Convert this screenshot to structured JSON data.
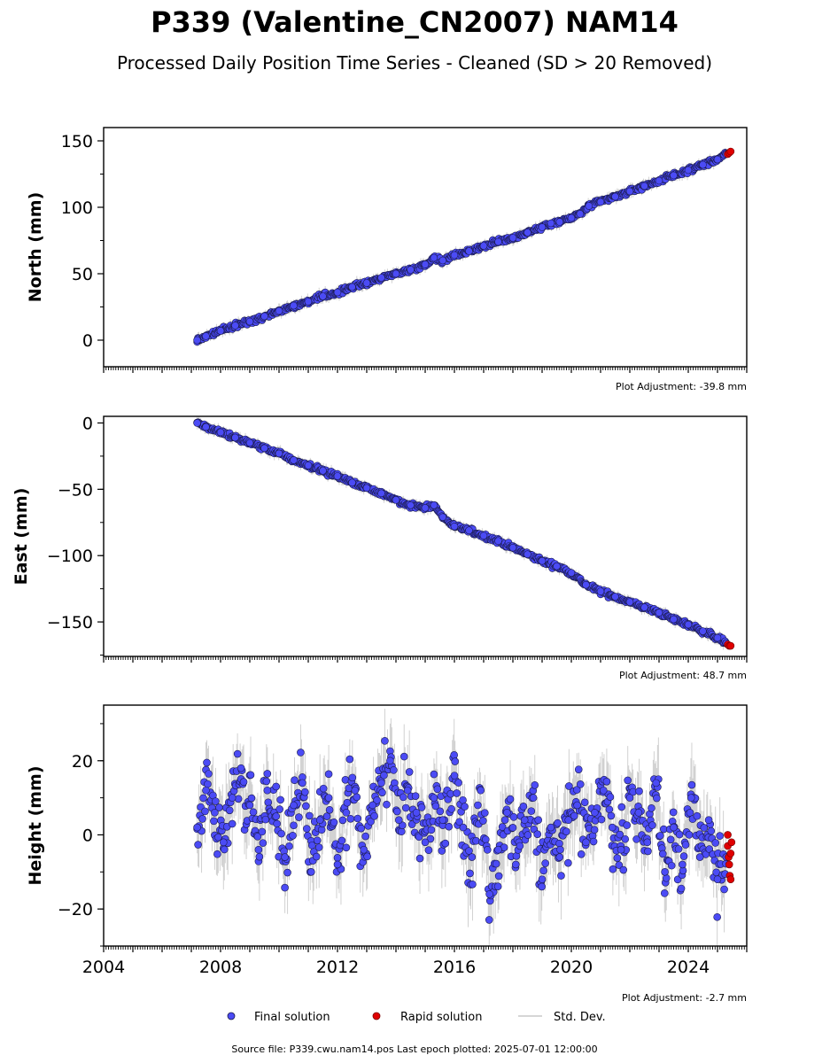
{
  "title": "P339 (Valentine_CN2007) NAM14",
  "subtitle": "Processed Daily Position Time Series - Cleaned (SD > 20 Removed)",
  "footer": "Source file: P339.cwu.nam14.pos  Last epoch plotted: 2025-07-01 12:00:00",
  "colors": {
    "final": "#4b4bf5",
    "final_edge": "#1a1a4a",
    "rapid": "#e00000",
    "stddev": "#9a9a9a"
  },
  "legend": [
    {
      "label": "Final solution",
      "marker": "dot",
      "color": "#4b4bf5"
    },
    {
      "label": "Rapid solution",
      "marker": "dot",
      "color": "#e00000"
    },
    {
      "label": "Std. Dev.",
      "marker": "line",
      "color": "#c8c8c8"
    }
  ],
  "chart_data": [
    {
      "type": "scatter",
      "ylabel": "North (mm)",
      "adjustment": "Plot Adjustment: -39.8 mm",
      "xlim": [
        2004.0,
        2026.0
      ],
      "ylim": [
        -20,
        160
      ],
      "yticks": [
        0,
        50,
        100,
        150
      ],
      "yticklabels": [
        "0",
        "50",
        "100",
        "150"
      ],
      "x_tick_labels_shown": false,
      "series": [
        {
          "name": "Final solution",
          "x": [
            2007.2,
            2007.5,
            2008.0,
            2008.5,
            2009.0,
            2009.5,
            2010.0,
            2010.5,
            2011.0,
            2011.5,
            2012.0,
            2012.5,
            2013.0,
            2013.5,
            2014.0,
            2014.5,
            2015.0,
            2015.3,
            2015.6,
            2016.0,
            2016.5,
            2017.0,
            2017.5,
            2018.0,
            2018.5,
            2019.0,
            2019.3,
            2019.6,
            2020.0,
            2020.3,
            2020.6,
            2021.0,
            2021.5,
            2022.0,
            2022.5,
            2023.0,
            2023.5,
            2024.0,
            2024.5,
            2025.0,
            2025.3
          ],
          "y": [
            0,
            3,
            7,
            11,
            14,
            18,
            22,
            26,
            29,
            33,
            36,
            40,
            43,
            47,
            50,
            53,
            57,
            62,
            60,
            64,
            67,
            71,
            74,
            77,
            81,
            85,
            88,
            89,
            92,
            95,
            101,
            104,
            108,
            112,
            116,
            120,
            124,
            128,
            132,
            136,
            140
          ]
        },
        {
          "name": "Rapid solution",
          "x": [
            2025.35,
            2025.4,
            2025.45
          ],
          "y": [
            140,
            141,
            142
          ]
        }
      ]
    },
    {
      "type": "scatter",
      "ylabel": "East (mm)",
      "adjustment": "Plot Adjustment: 48.7 mm",
      "xlim": [
        2004.0,
        2026.0
      ],
      "ylim": [
        -176,
        5
      ],
      "yticks": [
        0,
        -50,
        -100,
        -150
      ],
      "yticklabels": [
        "0",
        "−50",
        "−100",
        "−150"
      ],
      "x_tick_labels_shown": false,
      "series": [
        {
          "name": "Final solution",
          "x": [
            2007.2,
            2007.5,
            2008.0,
            2008.5,
            2009.0,
            2009.5,
            2010.0,
            2010.5,
            2011.0,
            2011.5,
            2012.0,
            2012.5,
            2013.0,
            2013.5,
            2014.0,
            2014.5,
            2015.0,
            2015.3,
            2015.6,
            2016.0,
            2016.5,
            2017.0,
            2017.5,
            2018.0,
            2018.5,
            2019.0,
            2019.5,
            2020.0,
            2020.5,
            2021.0,
            2021.5,
            2022.0,
            2022.5,
            2023.0,
            2023.5,
            2024.0,
            2024.5,
            2025.0,
            2025.3
          ],
          "y": [
            0,
            -3,
            -7,
            -11,
            -15,
            -19,
            -23,
            -28,
            -32,
            -36,
            -40,
            -45,
            -49,
            -53,
            -58,
            -62,
            -64,
            -62,
            -71,
            -78,
            -81,
            -85,
            -89,
            -94,
            -99,
            -104,
            -108,
            -113,
            -122,
            -127,
            -131,
            -135,
            -139,
            -143,
            -148,
            -152,
            -157,
            -162,
            -166
          ]
        },
        {
          "name": "Rapid solution",
          "x": [
            2025.35,
            2025.4,
            2025.45
          ],
          "y": [
            -167,
            -168,
            -168
          ]
        }
      ]
    },
    {
      "type": "scatter",
      "ylabel": "Height (mm)",
      "adjustment": "Plot Adjustment: -2.7 mm",
      "xlim": [
        2004.0,
        2026.0
      ],
      "ylim": [
        -30,
        35
      ],
      "yticks": [
        20,
        0,
        -20
      ],
      "yticklabels": [
        "20",
        "0",
        "−20"
      ],
      "x_tick_labels_shown": true,
      "xticks": [
        2004,
        2008,
        2012,
        2016,
        2020,
        2024
      ],
      "xticklabels": [
        "2004",
        "2008",
        "2012",
        "2016",
        "2020",
        "2024"
      ],
      "series": [
        {
          "name": "Final solution",
          "x": [
            2007.2,
            2007.5,
            2007.8,
            2008.1,
            2008.4,
            2008.7,
            2009.0,
            2009.3,
            2009.6,
            2009.9,
            2010.2,
            2010.5,
            2010.8,
            2011.1,
            2011.4,
            2011.7,
            2012.0,
            2012.3,
            2012.6,
            2012.9,
            2013.2,
            2013.5,
            2013.8,
            2014.1,
            2014.4,
            2014.7,
            2015.0,
            2015.3,
            2015.6,
            2016.0,
            2016.3,
            2016.6,
            2016.9,
            2017.2,
            2017.5,
            2017.8,
            2018.1,
            2018.4,
            2018.7,
            2019.0,
            2019.3,
            2019.6,
            2019.9,
            2020.2,
            2020.5,
            2020.8,
            2021.1,
            2021.4,
            2021.7,
            2022.0,
            2022.3,
            2022.6,
            2022.9,
            2023.2,
            2023.5,
            2023.8,
            2024.1,
            2024.4,
            2024.7,
            2025.0,
            2025.3
          ],
          "y": [
            2,
            12,
            6,
            -2,
            10,
            18,
            8,
            -4,
            12,
            5,
            -6,
            8,
            14,
            -10,
            4,
            10,
            -8,
            6,
            12,
            -4,
            8,
            14,
            20,
            4,
            12,
            6,
            -2,
            10,
            4,
            16,
            2,
            -6,
            12,
            -16,
            -4,
            6,
            -8,
            4,
            10,
            -12,
            2,
            -6,
            4,
            8,
            -2,
            6,
            12,
            2,
            -4,
            10,
            6,
            -2,
            14,
            -10,
            2,
            -8,
            10,
            -6,
            4,
            -12,
            -6
          ]
        },
        {
          "name": "Rapid solution",
          "x": [
            2025.35,
            2025.35,
            2025.38,
            2025.4,
            2025.42,
            2025.45,
            2025.45,
            2025.48
          ],
          "y": [
            0,
            -3,
            -6,
            -8,
            -11,
            -12,
            -5,
            -2
          ]
        }
      ]
    }
  ]
}
